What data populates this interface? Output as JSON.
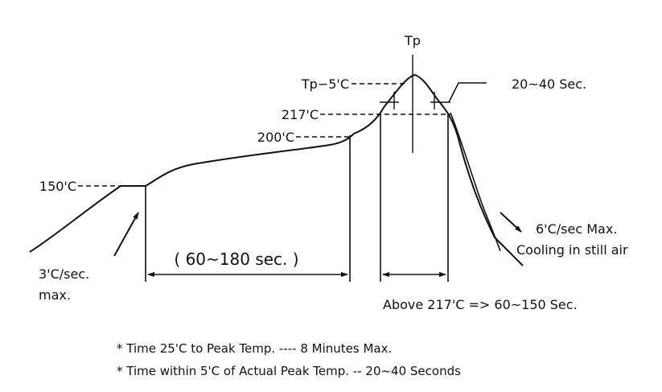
{
  "labels": {
    "tp": "Tp",
    "tp_minus_5": "Tp−5'C",
    "t217": "217'C",
    "t200": "200'C",
    "t150": "150'C",
    "peak_window": "20~40 Sec.",
    "preheat_window": "( 60~180 sec. )",
    "ramp_rate_line1": "3'C/sec.",
    "ramp_rate_line2": "max.",
    "cooling_line1": "6'C/sec Max.",
    "cooling_line2": "Cooling in still air",
    "above_217": "Above 217'C => 60~150 Sec."
  },
  "notes": [
    "* Time 25'C to Peak Temp. ---- 8 Minutes Max.",
    "* Time within 5'C of Actual Peak Temp. -- 20~40 Seconds"
  ],
  "colors": {
    "ink": "#111111",
    "background": "#ffffff"
  }
}
